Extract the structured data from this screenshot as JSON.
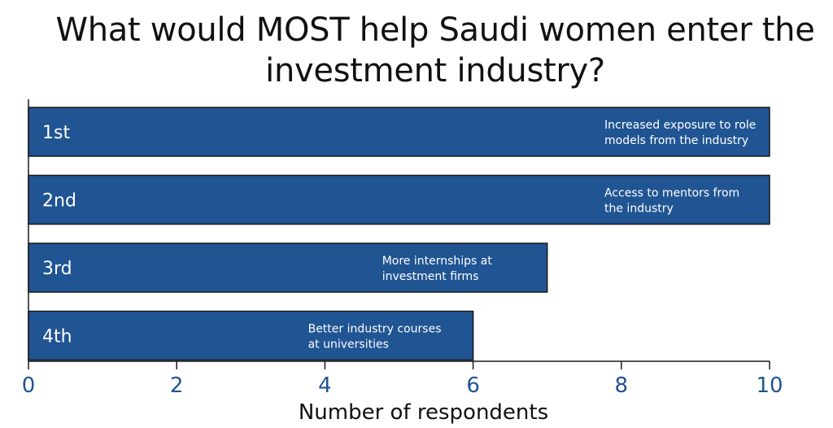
{
  "chart_data": {
    "type": "bar",
    "orientation": "horizontal",
    "title": "What would MOST help Saudi women enter the investment industry?",
    "xlabel": "Number of respondents",
    "ylabel": "",
    "xlim": [
      0,
      10
    ],
    "xticks": [
      0,
      2,
      4,
      6,
      8,
      10
    ],
    "grid": false,
    "legend": "none",
    "bar_color": "#205493",
    "tick_color": "#205493",
    "categories": [
      "1st",
      "2nd",
      "3rd",
      "4th"
    ],
    "values": [
      10,
      10,
      7,
      6
    ],
    "bar_labels": [
      [
        "Increased exposure to role",
        "models from the industry"
      ],
      [
        "Access to mentors from",
        "the industry"
      ],
      [
        "More internships at",
        "investment firms"
      ],
      [
        "Better industry courses",
        "at universities"
      ]
    ]
  }
}
